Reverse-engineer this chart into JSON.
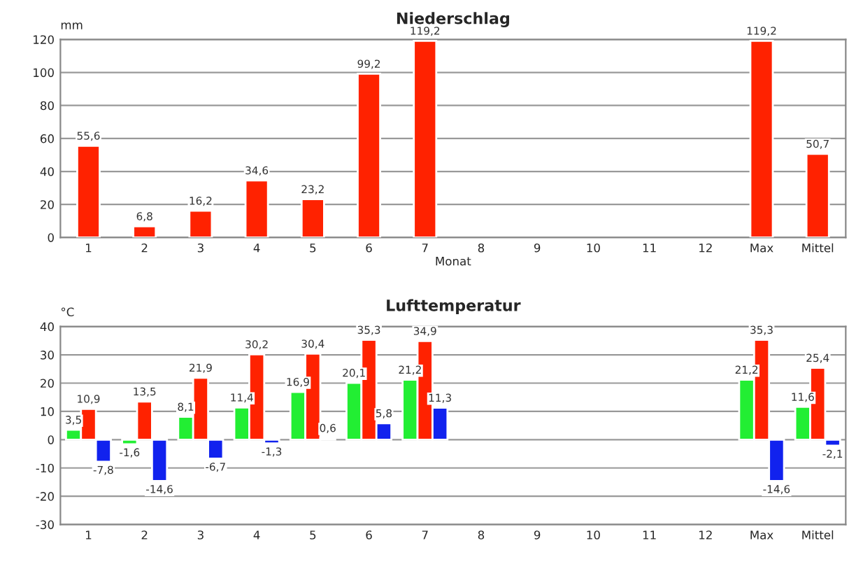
{
  "chart_data": [
    {
      "type": "bar",
      "title": "Niederschlag",
      "ylabel": "mm",
      "xlabel": "Monat",
      "categories": [
        "1",
        "2",
        "3",
        "4",
        "5",
        "6",
        "7",
        "8",
        "9",
        "10",
        "11",
        "12",
        "Max",
        "Mittel"
      ],
      "series": [
        {
          "color": "#ff2200",
          "values": [
            55.6,
            6.8,
            16.2,
            34.6,
            23.2,
            99.2,
            119.2,
            null,
            null,
            null,
            null,
            null,
            119.2,
            50.7
          ],
          "value_labels": [
            "55,6",
            "6,8",
            "16,2",
            "34,6",
            "23,2",
            "99,2",
            "119,2",
            null,
            null,
            null,
            null,
            null,
            "119,2",
            "50,7"
          ]
        }
      ],
      "ylim": [
        0,
        120
      ],
      "yticks": [
        0,
        20,
        40,
        60,
        80,
        100,
        120
      ],
      "grid": "y",
      "legend": false
    },
    {
      "type": "bar",
      "title": "Lufttemperatur",
      "ylabel": "°C",
      "categories": [
        "1",
        "2",
        "3",
        "4",
        "5",
        "6",
        "7",
        "8",
        "9",
        "10",
        "11",
        "12",
        "Max",
        "Mittel"
      ],
      "series": [
        {
          "color": "#22ee33",
          "values": [
            3.5,
            -1.6,
            8.1,
            11.4,
            16.9,
            20.1,
            21.2,
            null,
            null,
            null,
            null,
            null,
            21.2,
            11.6
          ],
          "value_labels": [
            "3,5",
            "-1,6",
            "8,1",
            "11,4",
            "16,9",
            "20,1",
            "21,2",
            null,
            null,
            null,
            null,
            null,
            "21,2",
            "11,6"
          ]
        },
        {
          "color": "#ff2200",
          "values": [
            10.9,
            13.5,
            21.9,
            30.2,
            30.4,
            35.3,
            34.9,
            null,
            null,
            null,
            null,
            null,
            35.3,
            25.4
          ],
          "value_labels": [
            "10,9",
            "13,5",
            "21,9",
            "30,2",
            "30,4",
            "35,3",
            "34,9",
            null,
            null,
            null,
            null,
            null,
            "35,3",
            "25,4"
          ]
        },
        {
          "color": "#1122ee",
          "values": [
            -7.8,
            -14.6,
            -6.7,
            -1.3,
            0.6,
            5.8,
            11.3,
            null,
            null,
            null,
            null,
            null,
            -14.6,
            -2.1
          ],
          "value_labels": [
            "-7,8",
            "-14,6",
            "-6,7",
            "-1,3",
            "0,6",
            "5,8",
            "11,3",
            null,
            null,
            null,
            null,
            null,
            "-14,6",
            "-2,1"
          ]
        }
      ],
      "ylim": [
        -30,
        40
      ],
      "yticks": [
        -30,
        -20,
        -10,
        0,
        10,
        20,
        30,
        40
      ],
      "grid": "y",
      "legend": false
    }
  ]
}
